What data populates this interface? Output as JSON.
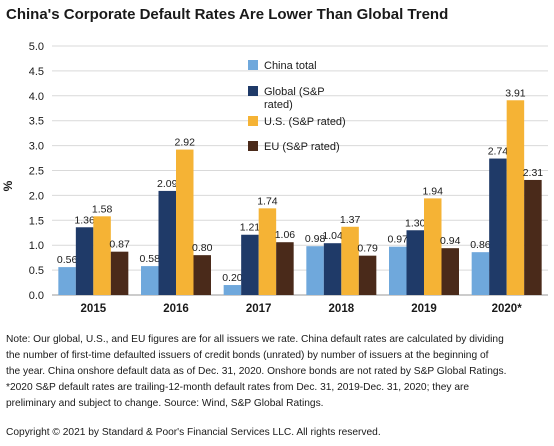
{
  "title": "China's Corporate Default Rates Are Lower Than Global Trend",
  "chart_data": {
    "type": "bar",
    "ylabel": "%",
    "ylim": [
      0,
      5
    ],
    "yticks": [
      "0.0",
      "0.5",
      "1.0",
      "1.5",
      "2.0",
      "2.5",
      "3.0",
      "3.5",
      "4.0",
      "4.5",
      "5.0"
    ],
    "categories": [
      "2015",
      "2016",
      "2017",
      "2018",
      "2019",
      "2020*"
    ],
    "series": [
      {
        "name": "China total",
        "color": "#6fa8dc",
        "values": [
          0.56,
          0.58,
          0.2,
          0.98,
          0.97,
          0.86
        ],
        "labels": [
          "0.56",
          "0.58",
          "0.20",
          "0.98",
          "0.97",
          "0.86"
        ]
      },
      {
        "name": "Global (S&P rated)",
        "color": "#1f3a68",
        "values": [
          1.36,
          2.09,
          1.21,
          1.04,
          1.3,
          2.74
        ],
        "labels": [
          "1.36",
          "2.09",
          "1.21",
          "1.04",
          "1.30",
          "2.74"
        ]
      },
      {
        "name": "U.S. (S&P rated)",
        "color": "#f5b335",
        "values": [
          1.58,
          2.92,
          1.74,
          1.37,
          1.94,
          3.91
        ],
        "labels": [
          "1.58",
          "2.92",
          "1.74",
          "1.37",
          "1.94",
          "3.91"
        ]
      },
      {
        "name": "EU (S&P rated)",
        "color": "#4a2a1a",
        "values": [
          0.87,
          0.8,
          1.06,
          0.79,
          0.94,
          2.31
        ],
        "labels": [
          "0.87",
          "0.80",
          "1.06",
          "0.79",
          "0.94",
          "2.31"
        ]
      }
    ],
    "legend_position": "top-center",
    "grid": true
  },
  "notes": [
    "Note: Our global, U.S., and EU figures are for all issuers we rate. China default rates are calculated by dividing",
    "the number of first-time defaulted issuers of credit bonds (unrated) by number of issuers at the beginning of",
    "the year. China onshore default data as of Dec. 31, 2020. Onshore bonds are not rated by S&P Global Ratings.",
    "*2020 S&P default rates are trailing-12-month default rates from Dec. 31, 2019-Dec. 31, 2020; they are",
    "preliminary and subject to change. Source: Wind, S&P Global Ratings."
  ],
  "copyright": "Copyright © 2021 by Standard & Poor's Financial Services LLC. All rights reserved."
}
